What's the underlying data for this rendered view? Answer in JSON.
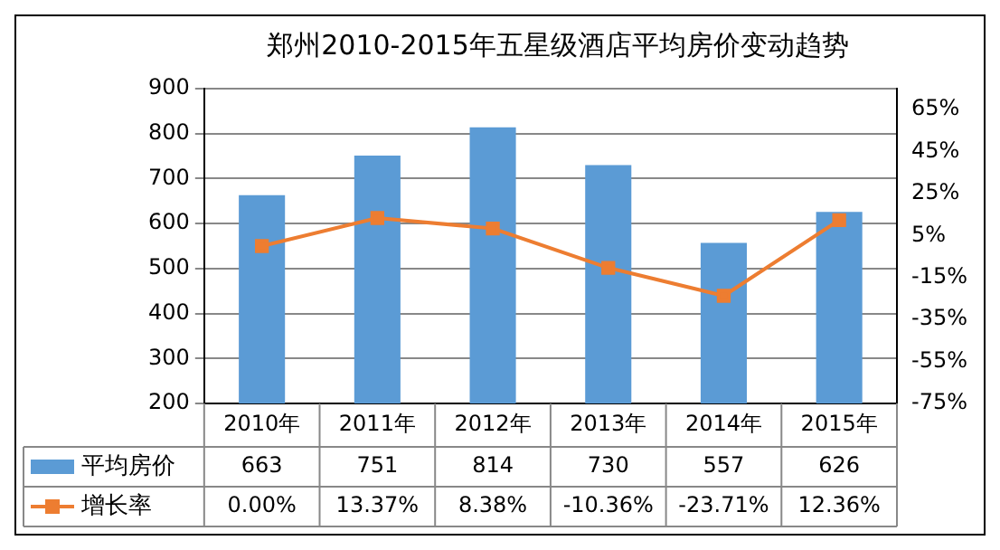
{
  "chart_data": {
    "type": "bar",
    "title": "郑州2010-2015年五星级酒店平均房价变动趋势",
    "categories": [
      "2010年",
      "2011年",
      "2012年",
      "2013年",
      "2014年",
      "2015年"
    ],
    "series": [
      {
        "name": "平均房价",
        "color": "#5b9bd5",
        "values": [
          663,
          751,
          814,
          730,
          557,
          626
        ],
        "value_labels": [
          "663",
          "751",
          "814",
          "730",
          "557",
          "626"
        ]
      },
      {
        "name": "增长率",
        "type": "line",
        "axis": "y2",
        "color": "#ed7d31",
        "marker": "square",
        "values": [
          0,
          13.37,
          8.38,
          -10.36,
          -23.71,
          12.36
        ],
        "value_labels": [
          "0.00%",
          "13.37%",
          "8.38%",
          "-10.36%",
          "-23.71%",
          "12.36%"
        ]
      }
    ],
    "ylim": [
      200,
      900
    ],
    "yticks": [
      200,
      300,
      400,
      500,
      600,
      700,
      800,
      900
    ],
    "y2lim": [
      -75,
      75
    ],
    "y2ticks": [
      {
        "value": -75,
        "label": "-75%"
      },
      {
        "value": -55,
        "label": "-55%"
      },
      {
        "value": -35,
        "label": "-35%"
      },
      {
        "value": -15,
        "label": "-15%"
      },
      {
        "value": 5,
        "label": "5%"
      },
      {
        "value": 25,
        "label": "25%"
      },
      {
        "value": 45,
        "label": "45%"
      },
      {
        "value": 65,
        "label": "65%"
      }
    ],
    "grid": "y",
    "legend": "bottom"
  }
}
